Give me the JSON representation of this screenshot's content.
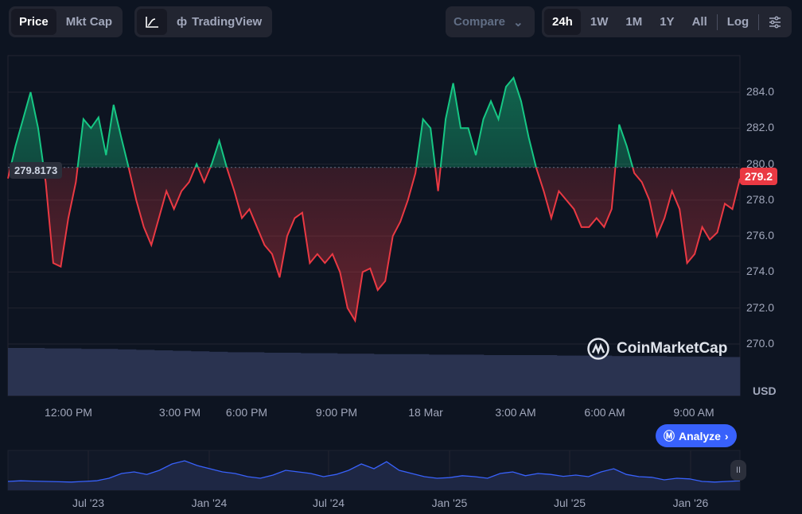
{
  "toolbar": {
    "price": "Price",
    "mktcap": "Mkt Cap",
    "tradingview": "TradingView",
    "compare": "Compare",
    "ranges": [
      "24h",
      "1W",
      "1M",
      "1Y",
      "All"
    ],
    "log": "Log"
  },
  "colors": {
    "bg": "#0d1421",
    "up": "#16c784",
    "down": "#ea3943",
    "volume": "#2a3350",
    "nav": "#3861fb"
  },
  "watermark": "CoinMarketCap",
  "analyze": "Analyze",
  "chart_data": {
    "type": "line",
    "title": "",
    "ylabel": "USD",
    "currency": "USD",
    "ylim": [
      269.6,
      286.1
    ],
    "yticks": [
      "284.0",
      "282.0",
      "280.0",
      "278.0",
      "276.0",
      "274.0",
      "272.0",
      "270.0"
    ],
    "ytick_values": [
      284,
      282,
      280,
      278,
      276,
      274,
      272,
      270
    ],
    "xticks": [
      "12:00 PM",
      "3:00 PM",
      "6:00 PM",
      "9:00 PM",
      "18 Mar",
      "3:00 AM",
      "6:00 AM",
      "9:00 AM"
    ],
    "reference_price": 279.8173,
    "reference_label": "279.8173",
    "current_price": 279.2,
    "current_label": "279.2",
    "price_values": [
      279.2,
      281,
      282.5,
      284,
      282,
      279,
      274.5,
      274.3,
      277,
      279,
      282.5,
      282,
      282.6,
      280.5,
      283.3,
      281.5,
      279.8,
      278,
      276.5,
      275.5,
      277,
      278.5,
      277.5,
      278.5,
      279,
      280,
      279,
      280,
      281.3,
      279.8,
      278.5,
      277,
      277.5,
      276.5,
      275.5,
      275,
      273.7,
      276,
      277,
      277.3,
      274.5,
      275,
      274.5,
      275,
      274,
      272,
      271.3,
      274,
      274.2,
      273,
      273.5,
      276,
      276.8,
      278,
      279.5,
      282.5,
      282,
      278.5,
      282.5,
      284.5,
      282,
      282,
      280.5,
      282.5,
      283.5,
      282.5,
      284.3,
      284.8,
      283.5,
      281.5,
      279.8,
      278.5,
      277,
      278.5,
      278,
      277.5,
      276.5,
      276.5,
      277,
      276.5,
      277.5,
      282.2,
      281,
      279.5,
      279,
      278,
      276,
      277,
      278.5,
      277.5,
      274.5,
      275,
      276.5,
      275.8,
      276.2,
      277.8,
      277.5,
      279.2
    ],
    "volume_values": [
      1.0,
      1.0,
      0.99,
      0.99,
      0.98,
      0.98,
      0.97,
      0.96,
      0.95,
      0.94,
      0.93,
      0.92,
      0.91,
      0.91,
      0.9,
      0.9,
      0.89,
      0.89,
      0.88,
      0.88,
      0.87,
      0.87,
      0.87,
      0.86,
      0.86,
      0.86,
      0.85,
      0.85,
      0.85,
      0.85,
      0.84,
      0.84,
      0.84,
      0.83,
      0.83,
      0.83,
      0.82,
      0.82,
      0.82,
      0.81
    ],
    "navigator": {
      "xticks": [
        "Jul '23",
        "Jan '24",
        "Jul '24",
        "Jan '25",
        "Jul '25",
        "Jan '26"
      ],
      "values": [
        0.2,
        0.22,
        0.21,
        0.2,
        0.19,
        0.18,
        0.2,
        0.22,
        0.3,
        0.45,
        0.5,
        0.42,
        0.55,
        0.75,
        0.85,
        0.7,
        0.6,
        0.5,
        0.45,
        0.35,
        0.3,
        0.4,
        0.55,
        0.5,
        0.45,
        0.35,
        0.42,
        0.55,
        0.75,
        0.6,
        0.82,
        0.55,
        0.45,
        0.35,
        0.3,
        0.32,
        0.38,
        0.35,
        0.3,
        0.45,
        0.5,
        0.38,
        0.45,
        0.42,
        0.36,
        0.4,
        0.35,
        0.5,
        0.6,
        0.42,
        0.35,
        0.33,
        0.25,
        0.3,
        0.28,
        0.2,
        0.18,
        0.2,
        0.22
      ]
    }
  }
}
